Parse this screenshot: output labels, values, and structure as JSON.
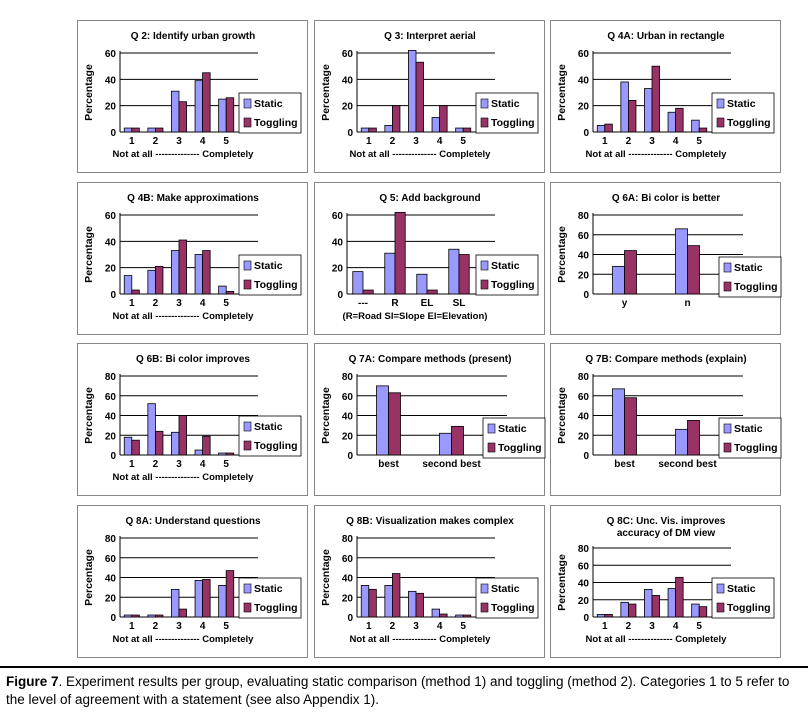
{
  "legend": {
    "static_label": "Static",
    "toggling_label": "Toggling",
    "static_color": "#9999ff",
    "toggling_color": "#993366"
  },
  "caption": {
    "label": "Figure 7",
    "text": ". Experiment results per group, evaluating static comparison (method 1) and toggling (method 2). Categories 1 to 5 refer to the level of agreement with a statement (see also Appendix 1)."
  },
  "chart_data": [
    {
      "type": "bar",
      "title": "Q 2: Identify urban growth",
      "ylabel": "Percentage",
      "ylim": [
        0,
        60
      ],
      "yticks": [
        0,
        20,
        40,
        60
      ],
      "categories": [
        "1",
        "2",
        "3",
        "4",
        "5"
      ],
      "xlabel": "Not at all -------------- Completely",
      "series": [
        {
          "name": "Static",
          "values": [
            3,
            3,
            31,
            39,
            25
          ]
        },
        {
          "name": "Toggling",
          "values": [
            3,
            3,
            23,
            45,
            26
          ]
        }
      ]
    },
    {
      "type": "bar",
      "title": "Q 3: Interpret aerial",
      "ylabel": "Percentage",
      "ylim": [
        0,
        60
      ],
      "yticks": [
        0,
        20,
        40,
        60
      ],
      "categories": [
        "1",
        "2",
        "3",
        "4",
        "5"
      ],
      "xlabel": "Not at all -------------- Completely",
      "series": [
        {
          "name": "Static",
          "values": [
            3,
            5,
            62,
            11,
            3
          ]
        },
        {
          "name": "Toggling",
          "values": [
            3,
            20,
            53,
            20,
            3
          ]
        }
      ]
    },
    {
      "type": "bar",
      "title": "Q 4A: Urban in rectangle",
      "ylabel": "Percentage",
      "ylim": [
        0,
        60
      ],
      "yticks": [
        0,
        20,
        40,
        60
      ],
      "categories": [
        "1",
        "2",
        "3",
        "4",
        "5"
      ],
      "xlabel": "Not at all -------------- Completely",
      "series": [
        {
          "name": "Static",
          "values": [
            5,
            38,
            33,
            15,
            9
          ]
        },
        {
          "name": "Toggling",
          "values": [
            6,
            24,
            50,
            18,
            3
          ]
        }
      ]
    },
    {
      "type": "bar",
      "title": "Q 4B: Make approximations",
      "ylabel": "Percentage",
      "ylim": [
        0,
        60
      ],
      "yticks": [
        0,
        20,
        40,
        60
      ],
      "categories": [
        "1",
        "2",
        "3",
        "4",
        "5"
      ],
      "xlabel": "Not at all -------------- Completely",
      "series": [
        {
          "name": "Static",
          "values": [
            14,
            18,
            33,
            30,
            6
          ]
        },
        {
          "name": "Toggling",
          "values": [
            3,
            21,
            41,
            33,
            2
          ]
        }
      ]
    },
    {
      "type": "bar",
      "title": "Q 5: Add background",
      "ylabel": "",
      "ylim": [
        0,
        60
      ],
      "yticks": [
        0,
        20,
        40,
        60
      ],
      "categories": [
        "---",
        "R",
        "EL",
        "SL"
      ],
      "xlabel": "(R=Road Sl=Slope El=Elevation)",
      "series": [
        {
          "name": "Static",
          "values": [
            17,
            31,
            15,
            34
          ]
        },
        {
          "name": "Toggling",
          "values": [
            3,
            62,
            3,
            30
          ]
        }
      ]
    },
    {
      "type": "bar",
      "title": "Q 6A: Bi color is better",
      "ylabel": "Percentage",
      "ylim": [
        0,
        80
      ],
      "yticks": [
        0,
        20,
        40,
        60,
        80
      ],
      "categories": [
        "y",
        "n"
      ],
      "xlabel": "",
      "series": [
        {
          "name": "Static",
          "values": [
            28,
            66
          ]
        },
        {
          "name": "Toggling",
          "values": [
            44,
            49
          ]
        }
      ]
    },
    {
      "type": "bar",
      "title": "Q 6B: Bi color improves",
      "ylabel": "Percentage",
      "ylim": [
        0,
        80
      ],
      "yticks": [
        0,
        20,
        40,
        60,
        80
      ],
      "categories": [
        "1",
        "2",
        "3",
        "4",
        "5"
      ],
      "xlabel": "Not at all -------------- Completely",
      "series": [
        {
          "name": "Static",
          "values": [
            18,
            52,
            23,
            5,
            2
          ]
        },
        {
          "name": "Toggling",
          "values": [
            15,
            24,
            40,
            19,
            2
          ]
        }
      ]
    },
    {
      "type": "bar",
      "title": "Q 7A: Compare methods (present)",
      "ylabel": "Percentage",
      "ylim": [
        0,
        80
      ],
      "yticks": [
        0,
        20,
        40,
        60,
        80
      ],
      "categories": [
        "best",
        "second best"
      ],
      "xlabel": "",
      "series": [
        {
          "name": "Static",
          "values": [
            70,
            22
          ]
        },
        {
          "name": "Toggling",
          "values": [
            63,
            29
          ]
        }
      ]
    },
    {
      "type": "bar",
      "title": "Q 7B: Compare methods (explain)",
      "ylabel": "Percentage",
      "ylim": [
        0,
        80
      ],
      "yticks": [
        0,
        20,
        40,
        60,
        80
      ],
      "categories": [
        "best",
        "second best"
      ],
      "xlabel": "",
      "series": [
        {
          "name": "Static",
          "values": [
            67,
            26
          ]
        },
        {
          "name": "Toggling",
          "values": [
            58,
            35
          ]
        }
      ]
    },
    {
      "type": "bar",
      "title": "Q 8A: Understand questions",
      "ylabel": "Percentage",
      "ylim": [
        0,
        80
      ],
      "yticks": [
        0,
        20,
        40,
        60,
        80
      ],
      "categories": [
        "1",
        "2",
        "3",
        "4",
        "5"
      ],
      "xlabel": "Not at all -------------- Completely",
      "series": [
        {
          "name": "Static",
          "values": [
            2,
            2,
            28,
            37,
            32
          ]
        },
        {
          "name": "Toggling",
          "values": [
            2,
            2,
            8,
            38,
            47
          ]
        }
      ]
    },
    {
      "type": "bar",
      "title": "Q 8B: Visualization makes complex",
      "ylabel": "Percentage",
      "ylim": [
        0,
        80
      ],
      "yticks": [
        0,
        20,
        40,
        60,
        80
      ],
      "categories": [
        "1",
        "2",
        "3",
        "4",
        "5"
      ],
      "xlabel": "Not at all -------------- Completely",
      "series": [
        {
          "name": "Static",
          "values": [
            32,
            32,
            26,
            8,
            2
          ]
        },
        {
          "name": "Toggling",
          "values": [
            28,
            44,
            24,
            3,
            2
          ]
        }
      ]
    },
    {
      "type": "bar",
      "title": "Q 8C: Unc. Vis. improves",
      "subtitle": "accuracy of DM view",
      "ylabel": "Percentage",
      "ylim": [
        0,
        80
      ],
      "yticks": [
        0,
        20,
        40,
        60,
        80
      ],
      "categories": [
        "1",
        "2",
        "3",
        "4",
        "5"
      ],
      "xlabel": "Not at all -------------- Completely",
      "series": [
        {
          "name": "Static",
          "values": [
            3,
            17,
            32,
            33,
            15
          ]
        },
        {
          "name": "Toggling",
          "values": [
            3,
            15,
            25,
            46,
            12
          ]
        }
      ]
    }
  ]
}
